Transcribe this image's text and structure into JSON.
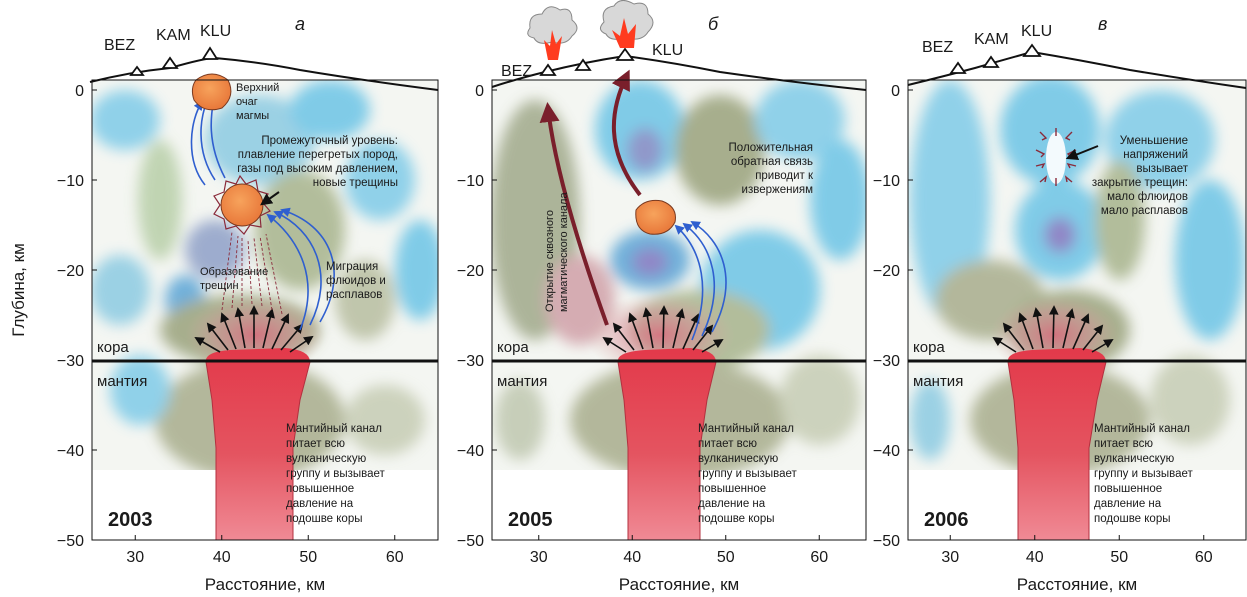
{
  "ylabel": "Глубина, км",
  "xlabel": "Расстояние, км",
  "x_ticks": [
    "30",
    "40",
    "50",
    "60"
  ],
  "y_ticks": [
    "0",
    "−10",
    "−20",
    "−30",
    "−40",
    "−50"
  ],
  "volcanoes": [
    "BEZ",
    "KAM",
    "KLU"
  ],
  "crust_label": "кора",
  "mantle_label": "мантия",
  "colors": {
    "mantle_channel": "#e8505b",
    "magma_chamber": "#f08a4b",
    "eruption": "#ff3b1f",
    "arrow_blue": "#2f5fcf",
    "arrow_brown": "#7a1f2b",
    "high_velocity": "#6cc4e6",
    "low_velocity": "#9aa27c"
  },
  "panels": [
    {
      "letter": "а",
      "year": "2003",
      "mantle_text": [
        "Мантийный канал",
        "питает всю",
        "вулканическую",
        "группу и вызывает",
        "повышенное",
        "давление на",
        "подошве коры"
      ],
      "upper_chamber": [
        "Верхний",
        "очаг",
        "магмы"
      ],
      "intermediate": [
        "Промежуточный уровень:",
        "плавление перегретых пород,",
        "газы под высоким давлением,",
        "новые трещины"
      ],
      "cracks": [
        "Образование",
        "трещин"
      ],
      "migration": [
        "Миграция",
        "флюидов и",
        "расплавов"
      ]
    },
    {
      "letter": "б",
      "year": "2005",
      "mantle_text": [
        "Мантийный канал",
        "питает всю",
        "вулканическую",
        "группу и вызывает",
        "повышенное",
        "давление на",
        "подошве коры"
      ],
      "channel": [
        "Открытие сквозного",
        "магматического канала"
      ],
      "feedback": [
        "Положительная",
        "обратная связь",
        "приводит к",
        "извержениям"
      ]
    },
    {
      "letter": "в",
      "year": "2006",
      "mantle_text": [
        "Мантийный канал",
        "питает всю",
        "вулканическую",
        "группу и вызывает",
        "повышенное",
        "давление на",
        "подошве коры"
      ],
      "stress": [
        "Уменьшение",
        "напряжений",
        "вызывает",
        "закрытие трещин:",
        "мало флюидов",
        "мало расплавов"
      ]
    }
  ]
}
